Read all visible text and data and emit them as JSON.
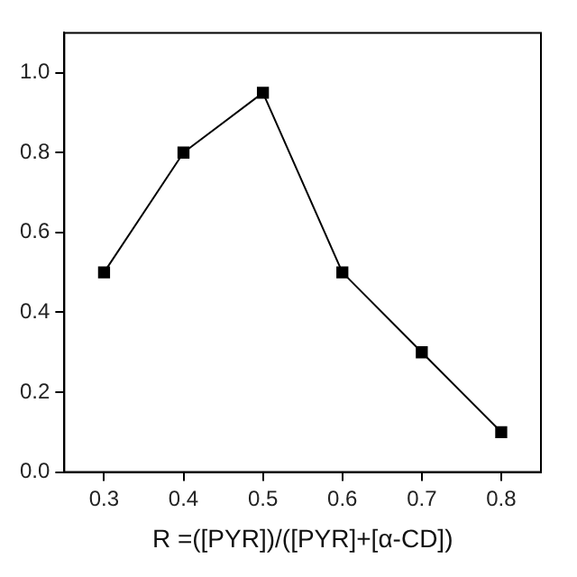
{
  "chart_data": {
    "type": "line",
    "xlabel": "R =([PYR])/([PYR]+[α-CD])",
    "x": [
      0.3,
      0.4,
      0.5,
      0.6,
      0.7,
      0.8
    ],
    "series": [
      {
        "color": "#000000",
        "values": [
          0.5,
          0.8,
          0.95,
          0.5,
          0.3,
          0.1
        ]
      }
    ],
    "xlim": [
      0.25,
      0.85
    ],
    "xticks": [
      0.3,
      0.4,
      0.5,
      0.6,
      0.7,
      0.8
    ],
    "ylim": [
      0,
      1.1
    ],
    "yticks": [
      {
        "value": 0,
        "label": "0.0"
      },
      0.2,
      0.4,
      0.6,
      0.8,
      {
        "value": 1,
        "label": "1.0"
      }
    ],
    "marker": "square",
    "line_style": "solid",
    "grid": false,
    "legend": false
  }
}
